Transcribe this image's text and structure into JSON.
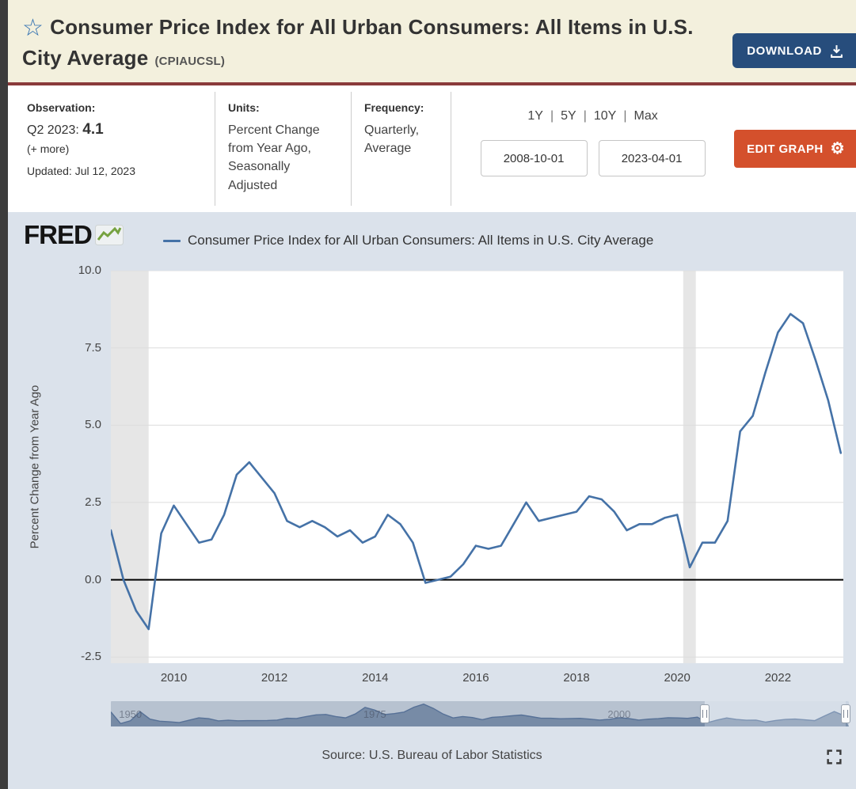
{
  "header": {
    "title": "Consumer Price Index for All Urban Consumers: All Items in U.S. City Average",
    "series_id": "(CPIAUCSL)",
    "favorite_icon": "star",
    "download_label": "DOWNLOAD"
  },
  "meta": {
    "observation": {
      "label": "Observation:",
      "period": "Q2 2023:",
      "value": "4.1",
      "more": "(+ more)",
      "updated": "Updated: Jul 12, 2023"
    },
    "units": {
      "label": "Units:",
      "value": "Percent Change from Year Ago, Seasonally Adjusted"
    },
    "frequency": {
      "label": "Frequency:",
      "value": "Quarterly, Average"
    },
    "range_links": [
      "1Y",
      "5Y",
      "10Y",
      "Max"
    ],
    "range_separator": "|",
    "date_start": "2008-10-01",
    "date_end": "2023-04-01",
    "edit_graph_label": "EDIT GRAPH"
  },
  "graph": {
    "brand": "FRED",
    "legend": "Consumer Price Index for All Urban Consumers: All Items in U.S. City Average",
    "line_color": "#4572a7",
    "recession_color": "#e6e6e6",
    "source": "Source: U.S. Bureau of Labor Statistics"
  },
  "chart_data": {
    "type": "line",
    "title": "Consumer Price Index for All Urban Consumers: All Items in U.S. City Average",
    "xlabel": "",
    "ylabel": "Percent Change from Year Ago",
    "xlim": [
      2008.75,
      2023.3
    ],
    "ylim": [
      -2.7,
      10.0
    ],
    "yticks": [
      10.0,
      7.5,
      5.0,
      2.5,
      0.0,
      -2.5
    ],
    "xticks": [
      2010,
      2012,
      2014,
      2016,
      2018,
      2020,
      2022
    ],
    "grid": true,
    "zero_line": true,
    "legend_position": "top",
    "recession_bands": [
      [
        2008.75,
        2009.5
      ],
      [
        2020.12,
        2020.37
      ]
    ],
    "x": [
      2008.75,
      2009,
      2009.25,
      2009.5,
      2009.75,
      2010,
      2010.25,
      2010.5,
      2010.75,
      2011,
      2011.25,
      2011.5,
      2011.75,
      2012,
      2012.25,
      2012.5,
      2012.75,
      2013,
      2013.25,
      2013.5,
      2013.75,
      2014,
      2014.25,
      2014.5,
      2014.75,
      2015,
      2015.25,
      2015.5,
      2015.75,
      2016,
      2016.25,
      2016.5,
      2016.75,
      2017,
      2017.25,
      2017.5,
      2017.75,
      2018,
      2018.25,
      2018.5,
      2018.75,
      2019,
      2019.25,
      2019.5,
      2019.75,
      2020,
      2020.25,
      2020.5,
      2020.75,
      2021,
      2021.25,
      2021.5,
      2021.75,
      2022,
      2022.25,
      2022.5,
      2022.75,
      2023,
      2023.25
    ],
    "values": [
      1.6,
      0.0,
      -1.0,
      -1.6,
      1.5,
      2.4,
      1.8,
      1.2,
      1.3,
      2.1,
      3.4,
      3.8,
      3.3,
      2.8,
      1.9,
      1.7,
      1.9,
      1.7,
      1.4,
      1.6,
      1.2,
      1.4,
      2.1,
      1.8,
      1.2,
      -0.1,
      0.0,
      0.1,
      0.5,
      1.1,
      1.0,
      1.1,
      1.8,
      2.5,
      1.9,
      2.0,
      2.1,
      2.2,
      2.7,
      2.6,
      2.2,
      1.6,
      1.8,
      1.8,
      2.0,
      2.1,
      0.4,
      1.2,
      1.2,
      1.9,
      4.8,
      5.3,
      6.7,
      8.0,
      8.6,
      8.3,
      7.1,
      5.8,
      4.1
    ],
    "range_selector": {
      "type": "area",
      "xlim": [
        1948,
        2023.5
      ],
      "xticks": [
        1950,
        1975,
        2000
      ],
      "selected_window": [
        2008.75,
        2023.25
      ],
      "x": [
        1948,
        1949,
        1950,
        1951,
        1952,
        1953,
        1954,
        1955,
        1956,
        1957,
        1958,
        1959,
        1960,
        1961,
        1962,
        1963,
        1964,
        1965,
        1966,
        1967,
        1968,
        1969,
        1970,
        1971,
        1972,
        1973,
        1974,
        1975,
        1976,
        1977,
        1978,
        1979,
        1980,
        1981,
        1982,
        1983,
        1984,
        1985,
        1986,
        1987,
        1988,
        1989,
        1990,
        1991,
        1992,
        1993,
        1994,
        1995,
        1996,
        1997,
        1998,
        1999,
        2000,
        2001,
        2002,
        2003,
        2004,
        2005,
        2006,
        2007,
        2008,
        2009,
        2010,
        2011,
        2012,
        2013,
        2014,
        2015,
        2016,
        2017,
        2018,
        2019,
        2020,
        2021,
        2022,
        2023
      ],
      "values": [
        7.7,
        -1.0,
        1.1,
        7.9,
        2.3,
        0.8,
        0.3,
        -0.3,
        1.5,
        3.3,
        2.7,
        1.0,
        1.5,
        1.1,
        1.2,
        1.2,
        1.3,
        1.6,
        3.0,
        2.8,
        4.3,
        5.5,
        5.8,
        4.3,
        3.3,
        6.2,
        11.1,
        9.1,
        5.7,
        6.5,
        7.6,
        11.3,
        13.5,
        10.3,
        6.1,
        3.2,
        4.3,
        3.5,
        1.9,
        3.7,
        4.1,
        4.8,
        5.4,
        4.2,
        3.0,
        3.0,
        2.6,
        2.8,
        2.9,
        2.3,
        1.6,
        2.2,
        3.4,
        2.8,
        1.6,
        2.3,
        2.7,
        3.4,
        3.2,
        2.9,
        3.8,
        -0.4,
        1.6,
        3.2,
        2.1,
        1.5,
        1.6,
        0.1,
        1.3,
        2.1,
        2.4,
        1.8,
        1.2,
        4.7,
        8.0,
        5.0
      ]
    }
  }
}
